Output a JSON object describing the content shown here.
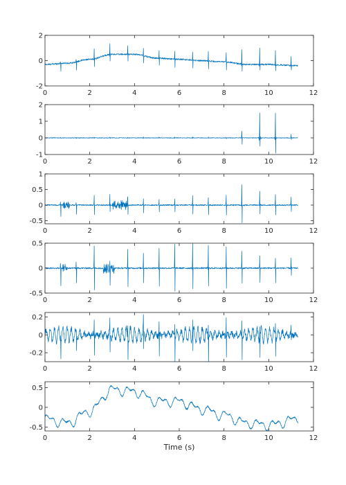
{
  "figure": {
    "xlabel": "Time (s)",
    "line_color": "#0072bd"
  },
  "chart_data": [
    {
      "type": "line",
      "xlim": [
        0,
        12
      ],
      "ylim": [
        -2,
        2
      ],
      "xticks": [
        0,
        2,
        4,
        6,
        8,
        10,
        12
      ],
      "yticks": [
        -2,
        0,
        2
      ],
      "x_end": 11.3,
      "signal": {
        "beats": [
          0.7,
          1.4,
          2.2,
          2.9,
          3.7,
          4.4,
          5.1,
          5.8,
          6.6,
          7.3,
          8.1,
          8.8,
          9.6,
          10.3,
          11.0
        ],
        "spike_up": [
          0.5,
          0.6,
          0.8,
          0.9,
          0.7,
          0.6,
          0.6,
          0.6,
          0.7,
          0.7,
          0.8,
          1.2,
          1.3,
          1.1,
          0.7
        ],
        "spike_down": [
          -0.6,
          -0.7,
          -0.6,
          -0.5,
          -0.6,
          -0.6,
          -0.6,
          -0.6,
          -0.6,
          -0.6,
          -0.6,
          -0.5,
          -0.4,
          -0.5,
          -0.4
        ],
        "baseline": [
          [
            0,
            -0.3
          ],
          [
            1,
            -0.2
          ],
          [
            2,
            0.1
          ],
          [
            3,
            0.5
          ],
          [
            4,
            0.5
          ],
          [
            5,
            0.2
          ],
          [
            6,
            0.1
          ],
          [
            7,
            0.0
          ],
          [
            8,
            -0.1
          ],
          [
            9,
            -0.3
          ],
          [
            10,
            -0.3
          ],
          [
            11.3,
            -0.4
          ]
        ],
        "noise": 0.06
      }
    },
    {
      "type": "line",
      "xlim": [
        0,
        12
      ],
      "ylim": [
        -1,
        2
      ],
      "xticks": [
        0,
        2,
        4,
        6,
        8,
        10,
        12
      ],
      "yticks": [
        -1,
        0,
        1,
        2
      ],
      "x_end": 11.3,
      "signal": {
        "beats": [
          0.7,
          1.4,
          2.2,
          2.9,
          3.7,
          4.4,
          5.1,
          5.8,
          6.6,
          7.3,
          8.1,
          8.8,
          9.6,
          10.3,
          11.0
        ],
        "spike_up": [
          0.05,
          0.05,
          0.05,
          0.05,
          0.05,
          0.05,
          0.05,
          0.05,
          0.05,
          0.05,
          0.05,
          0.4,
          1.5,
          1.5,
          0.2
        ],
        "spike_down": [
          -0.03,
          -0.03,
          -0.03,
          -0.03,
          -0.03,
          -0.03,
          -0.03,
          -0.03,
          -0.03,
          -0.03,
          -0.03,
          -0.4,
          -0.5,
          -0.9,
          -0.1
        ],
        "baseline": [
          [
            0,
            0
          ],
          [
            11.3,
            0
          ]
        ],
        "noise": 0.02
      }
    },
    {
      "type": "line",
      "xlim": [
        0,
        12
      ],
      "ylim": [
        -0.6,
        1
      ],
      "xticks": [
        0,
        2,
        4,
        6,
        8,
        10,
        12
      ],
      "yticks": [
        -0.5,
        0,
        0.5,
        1
      ],
      "x_end": 11.3,
      "signal": {
        "beats": [
          0.7,
          1.4,
          2.2,
          2.9,
          3.7,
          4.4,
          5.1,
          5.8,
          6.6,
          7.3,
          8.1,
          8.8,
          9.6,
          10.3,
          11.0
        ],
        "spike_up": [
          0.35,
          0.25,
          0.3,
          0.35,
          0.35,
          0.2,
          0.2,
          0.2,
          0.3,
          0.25,
          0.3,
          0.65,
          0.45,
          0.35,
          0.25
        ],
        "spike_down": [
          -0.35,
          -0.3,
          -0.3,
          -0.2,
          -0.3,
          -0.25,
          -0.2,
          -0.2,
          -0.3,
          -0.3,
          -0.3,
          -0.55,
          -0.3,
          -0.3,
          -0.2
        ],
        "baseline": [
          [
            0,
            0
          ],
          [
            11.3,
            0
          ]
        ],
        "noise": 0.02,
        "bursts": [
          [
            0.8,
            1.1,
            0.1
          ],
          [
            3.0,
            3.7,
            0.13
          ]
        ]
      }
    },
    {
      "type": "line",
      "xlim": [
        0,
        12
      ],
      "ylim": [
        -0.5,
        0.5
      ],
      "xticks": [
        0,
        2,
        4,
        6,
        8,
        10,
        12
      ],
      "yticks": [
        -0.5,
        0,
        0.5
      ],
      "x_end": 11.3,
      "signal": {
        "beats": [
          0.7,
          1.4,
          2.2,
          2.9,
          3.7,
          4.4,
          5.1,
          5.8,
          6.6,
          7.3,
          8.1,
          8.8,
          9.6,
          10.3,
          11.0
        ],
        "spike_up": [
          0.25,
          0.35,
          0.45,
          0.2,
          0.38,
          0.3,
          0.4,
          0.48,
          0.48,
          0.45,
          0.42,
          0.35,
          0.25,
          0.2,
          0.2
        ],
        "spike_down": [
          -0.35,
          -0.3,
          -0.45,
          -0.3,
          -0.38,
          -0.3,
          -0.35,
          -0.45,
          -0.4,
          -0.35,
          -0.4,
          -0.3,
          -0.3,
          -0.3,
          -0.15
        ],
        "baseline": [
          [
            0,
            0
          ],
          [
            11.3,
            0
          ]
        ],
        "noise": 0.015,
        "bursts": [
          [
            0.8,
            1.0,
            0.08
          ],
          [
            2.6,
            3.1,
            0.1
          ]
        ]
      }
    },
    {
      "type": "line",
      "xlim": [
        0,
        12
      ],
      "ylim": [
        -0.3,
        0.25
      ],
      "xticks": [
        0,
        2,
        4,
        6,
        8,
        10,
        12
      ],
      "yticks": [
        -0.2,
        0,
        0.2
      ],
      "x_end": 11.3,
      "signal": {
        "beats": [
          0.7,
          1.4,
          2.2,
          2.9,
          3.7,
          4.4,
          5.1,
          5.8,
          6.6,
          7.3,
          8.1,
          8.8,
          9.6,
          10.3,
          11.0
        ],
        "spike_up": [
          0.15,
          0.15,
          0.18,
          0.16,
          0.16,
          0.16,
          0.17,
          0.18,
          0.17,
          0.17,
          0.18,
          0.17,
          0.15,
          0.14,
          0.12
        ],
        "spike_down": [
          -0.2,
          -0.2,
          -0.23,
          -0.21,
          -0.21,
          -0.2,
          -0.22,
          -0.24,
          -0.22,
          -0.22,
          -0.24,
          -0.22,
          -0.2,
          -0.18,
          -0.1
        ],
        "baseline": [
          [
            0,
            0
          ],
          [
            11.3,
            0
          ]
        ],
        "noise": 0.03,
        "oscillation": 0.08
      }
    },
    {
      "type": "line",
      "xlim": [
        0,
        12
      ],
      "ylim": [
        -0.6,
        0.65
      ],
      "xticks": [
        0,
        2,
        4,
        6,
        8,
        10,
        12
      ],
      "yticks": [
        -0.5,
        0,
        0.5
      ],
      "x_end": 11.3,
      "signal": {
        "baseline": [
          [
            0,
            -0.3
          ],
          [
            1,
            -0.4
          ],
          [
            2,
            -0.1
          ],
          [
            3,
            0.45
          ],
          [
            4,
            0.4
          ],
          [
            5,
            0.15
          ],
          [
            6,
            0.15
          ],
          [
            7,
            -0.05
          ],
          [
            8,
            -0.2
          ],
          [
            9,
            -0.4
          ],
          [
            10,
            -0.45
          ],
          [
            11.3,
            -0.3
          ]
        ],
        "wobble": 0.15,
        "noise": 0.02
      }
    }
  ]
}
